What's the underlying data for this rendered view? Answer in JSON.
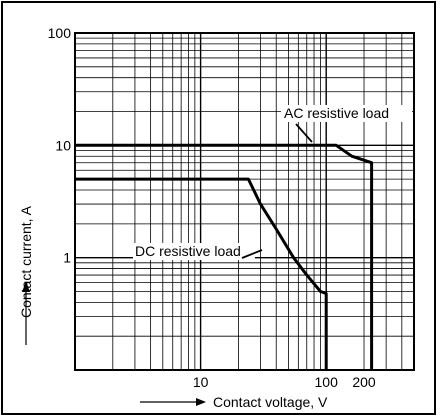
{
  "chart_data": {
    "type": "line",
    "title": "",
    "xlabel": "Contact voltage, V",
    "ylabel": "Contact current, A",
    "x_scale": "log",
    "y_scale": "log",
    "xlim": [
      1,
      500
    ],
    "ylim": [
      0.1,
      100
    ],
    "grid": true,
    "x_ticks": [
      {
        "value": 10,
        "label": "10"
      },
      {
        "value": 100,
        "label": "100"
      },
      {
        "value": 200,
        "label": "200"
      }
    ],
    "y_ticks": [
      {
        "value": 100,
        "label": "100"
      },
      {
        "value": 10,
        "label": "10"
      },
      {
        "value": 1,
        "label": "1"
      }
    ],
    "series": [
      {
        "name": "AC resistive load",
        "points": [
          [
            1,
            10
          ],
          [
            120,
            10
          ],
          [
            160,
            8
          ],
          [
            230,
            7
          ],
          [
            230,
            0.1
          ]
        ]
      },
      {
        "name": "DC resistive load",
        "points": [
          [
            1,
            5
          ],
          [
            24,
            5
          ],
          [
            30,
            3
          ],
          [
            40,
            1.8
          ],
          [
            55,
            1.0
          ],
          [
            70,
            0.7
          ],
          [
            90,
            0.5
          ],
          [
            100,
            0.48
          ],
          [
            100,
            0.1
          ]
        ]
      }
    ],
    "annotations": [
      {
        "text": "AC resistive load"
      },
      {
        "text": "DC resistive load"
      }
    ]
  }
}
